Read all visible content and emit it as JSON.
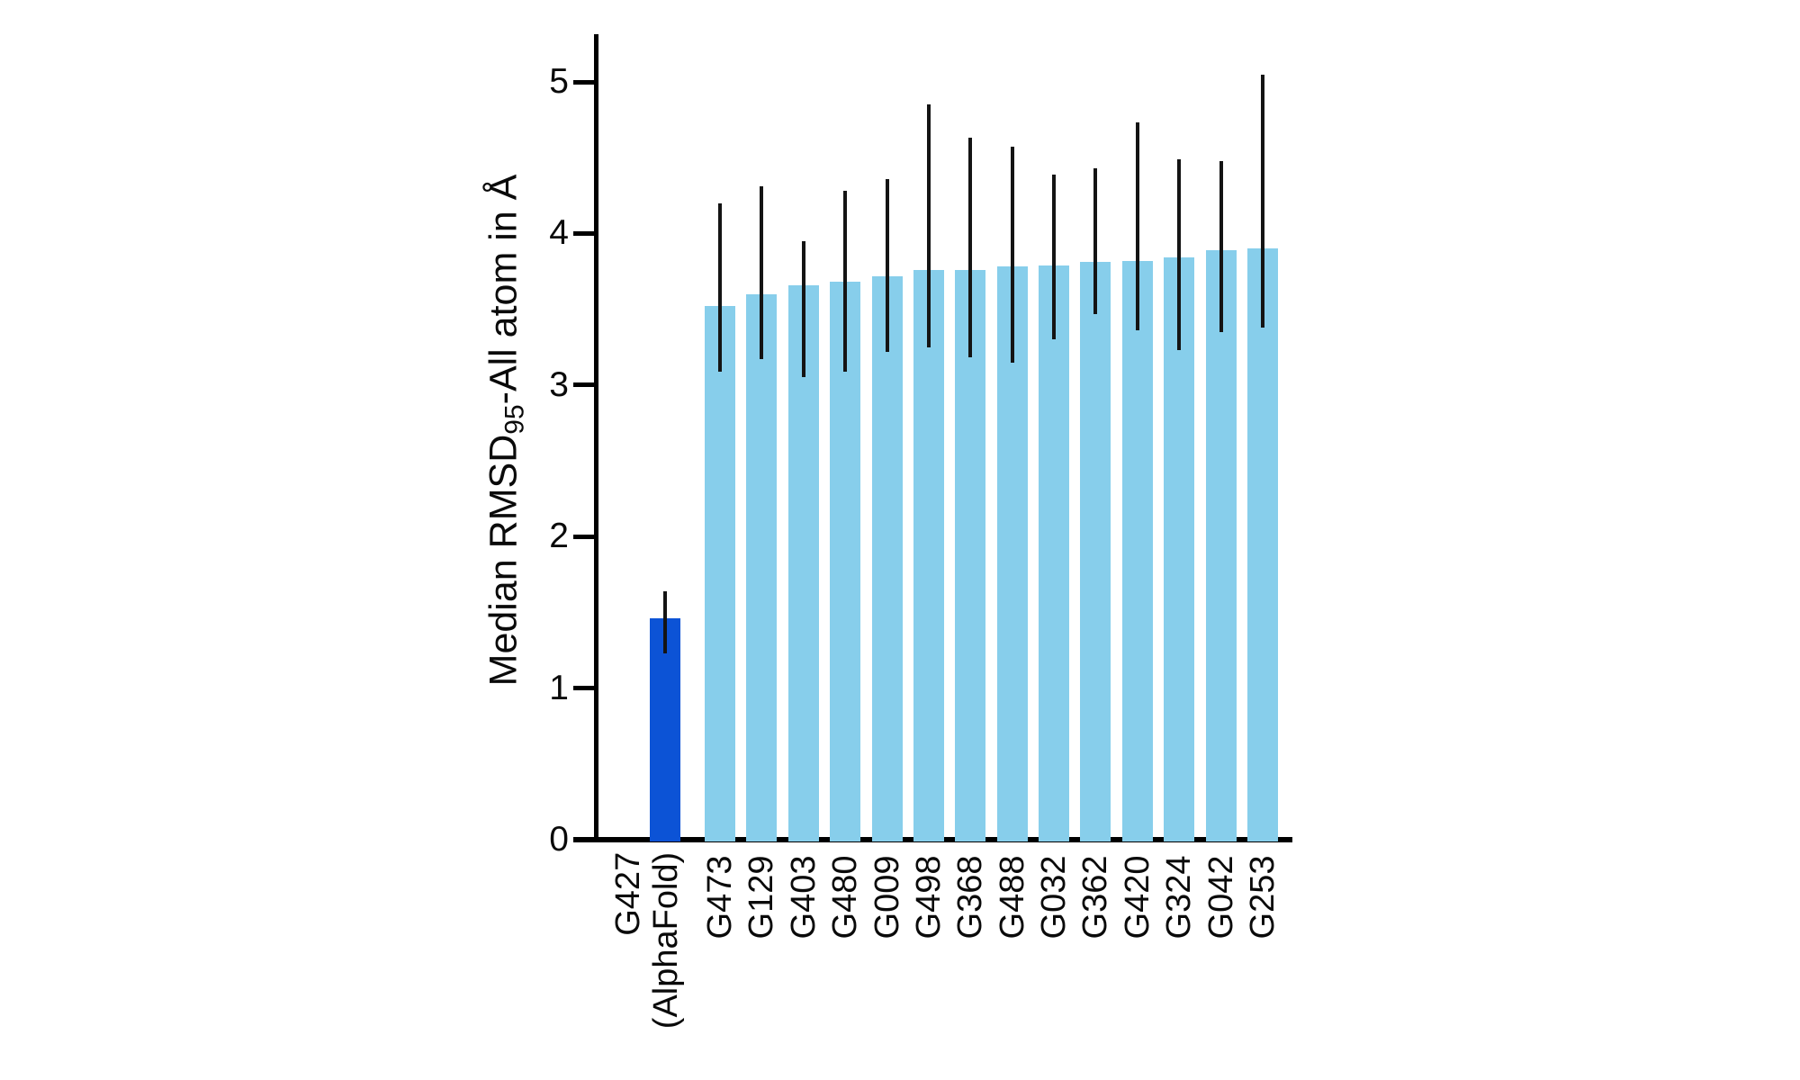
{
  "figure": {
    "background": "#ffffff"
  },
  "chart_data": {
    "type": "bar",
    "title": "",
    "xlabel": "",
    "ylabel": {
      "prefix": "Median RMSD",
      "subscript": "95",
      "suffix": "-All atom in Å"
    },
    "ylim": [
      0,
      5.3
    ],
    "yticks": [
      "0",
      "1",
      "2",
      "3",
      "4",
      "5"
    ],
    "grid": false,
    "legend": null,
    "error_bars": "asymmetric vertical black lines, no caps",
    "colors": {
      "highlight_bar": "#0c53d6",
      "default_bar": "#87ceeb",
      "error_bar": "#141414",
      "axis": "#000000"
    },
    "bars": [
      {
        "label": "G427",
        "label_line2": "(AlphaFold)",
        "value": 1.46,
        "err_lo": 1.23,
        "err_hi": 1.64,
        "highlight": true
      },
      {
        "label": "G473",
        "value": 3.52,
        "err_lo": 3.09,
        "err_hi": 4.2,
        "highlight": false
      },
      {
        "label": "G129",
        "value": 3.6,
        "err_lo": 3.17,
        "err_hi": 4.31,
        "highlight": false
      },
      {
        "label": "G403",
        "value": 3.66,
        "err_lo": 3.05,
        "err_hi": 3.95,
        "highlight": false
      },
      {
        "label": "G480",
        "value": 3.68,
        "err_lo": 3.09,
        "err_hi": 4.28,
        "highlight": false
      },
      {
        "label": "G009",
        "value": 3.72,
        "err_lo": 3.22,
        "err_hi": 4.36,
        "highlight": false
      },
      {
        "label": "G498",
        "value": 3.76,
        "err_lo": 3.25,
        "err_hi": 4.85,
        "highlight": false
      },
      {
        "label": "G368",
        "value": 3.76,
        "err_lo": 3.18,
        "err_hi": 4.63,
        "highlight": false
      },
      {
        "label": "G488",
        "value": 3.78,
        "err_lo": 3.15,
        "err_hi": 4.57,
        "highlight": false
      },
      {
        "label": "G032",
        "value": 3.79,
        "err_lo": 3.3,
        "err_hi": 4.39,
        "highlight": false
      },
      {
        "label": "G362",
        "value": 3.81,
        "err_lo": 3.47,
        "err_hi": 4.43,
        "highlight": false
      },
      {
        "label": "G420",
        "value": 3.82,
        "err_lo": 3.36,
        "err_hi": 4.73,
        "highlight": false
      },
      {
        "label": "G324",
        "value": 3.84,
        "err_lo": 3.23,
        "err_hi": 4.49,
        "highlight": false
      },
      {
        "label": "G042",
        "value": 3.89,
        "err_lo": 3.35,
        "err_hi": 4.48,
        "highlight": false
      },
      {
        "label": "G253",
        "value": 3.9,
        "err_lo": 3.38,
        "err_hi": 5.05,
        "highlight": false
      }
    ]
  }
}
